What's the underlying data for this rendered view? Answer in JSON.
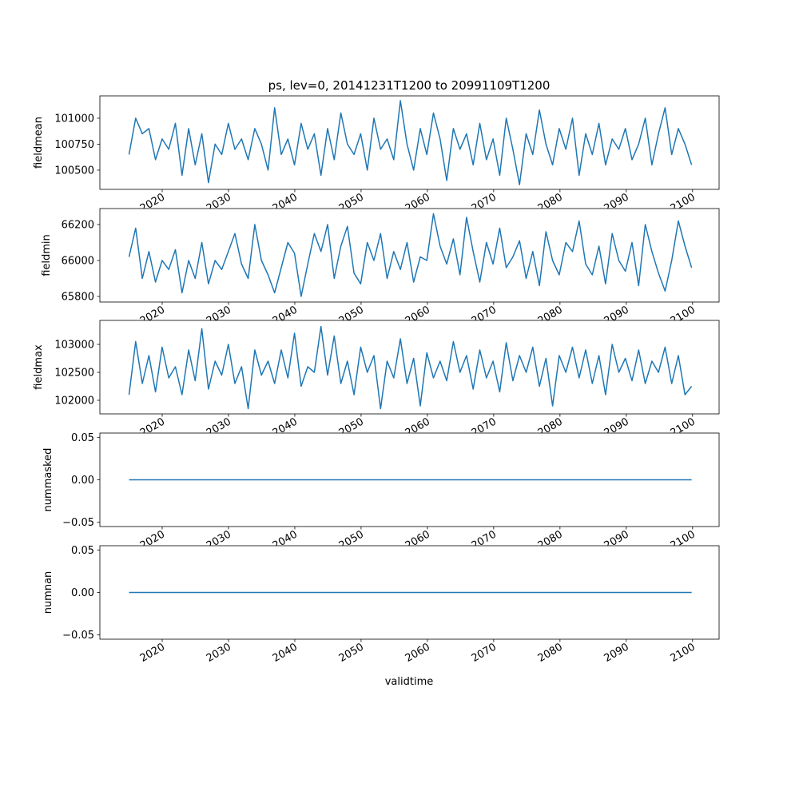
{
  "chart_data": {
    "type": "line",
    "title": "ps, lev=0, 20141231T1200 to 20991109T1200",
    "xlabel": "validtime",
    "xlim": [
      2010.6,
      2104.0
    ],
    "x_ticks": [
      2020,
      2030,
      2040,
      2050,
      2060,
      2070,
      2080,
      2090,
      2100
    ],
    "x_tick_labels": [
      "2020",
      "2030",
      "2040",
      "2050",
      "2060",
      "2070",
      "2080",
      "2090",
      "2100"
    ],
    "x_start": 2015.0,
    "x_end": 2099.85,
    "line_color": "#1f77b4",
    "subplots": [
      {
        "ylabel": "fieldmean",
        "ylim": [
          100315,
          101215
        ],
        "y_ticks": [
          100500,
          100750,
          101000
        ],
        "y_tick_labels": [
          "100500",
          "100750",
          "101000"
        ],
        "values": [
          100650,
          101000,
          100850,
          100900,
          100600,
          100800,
          100700,
          100950,
          100450,
          100900,
          100550,
          100850,
          100380,
          100750,
          100650,
          100950,
          100700,
          100800,
          100600,
          100900,
          100750,
          100500,
          101100,
          100650,
          100800,
          100550,
          100950,
          100700,
          100850,
          100450,
          100900,
          100600,
          101050,
          100750,
          100650,
          100850,
          100500,
          101000,
          100700,
          100800,
          100600,
          101170,
          100750,
          100500,
          100900,
          100650,
          101050,
          100800,
          100400,
          100900,
          100700,
          100850,
          100550,
          100950,
          100600,
          100800,
          100450,
          101000,
          100700,
          100360,
          100850,
          100650,
          101080,
          100750,
          100550,
          100900,
          100700,
          101000,
          100450,
          100850,
          100650,
          100950,
          100550,
          100800,
          100700,
          100900,
          100600,
          100750,
          101000,
          100550,
          100850,
          101100,
          100650,
          100900,
          100750,
          100550
        ]
      },
      {
        "ylabel": "fieldmin",
        "ylim": [
          65769,
          66289
        ],
        "y_ticks": [
          65800,
          66000,
          66200
        ],
        "y_tick_labels": [
          "65800",
          "66000",
          "66200"
        ],
        "values": [
          66020,
          66180,
          65900,
          66050,
          65880,
          66000,
          65950,
          66060,
          65820,
          66000,
          65900,
          66100,
          65870,
          66000,
          65950,
          66050,
          66150,
          65980,
          65900,
          66200,
          66000,
          65920,
          65820,
          65960,
          66100,
          66040,
          65800,
          65980,
          66150,
          66050,
          66200,
          65900,
          66080,
          66190,
          65930,
          65870,
          66100,
          66000,
          66150,
          65900,
          66050,
          65950,
          66100,
          65880,
          66020,
          66000,
          66260,
          66080,
          65980,
          66120,
          65920,
          66240,
          66050,
          65880,
          66100,
          65980,
          66180,
          65960,
          66020,
          66110,
          65900,
          66050,
          65860,
          66160,
          66000,
          65920,
          66100,
          66050,
          66220,
          65980,
          65920,
          66080,
          65870,
          66150,
          66000,
          65940,
          66100,
          65860,
          66200,
          66050,
          65930,
          65830,
          66000,
          66220,
          66080,
          65960
        ]
      },
      {
        "ylabel": "fieldmax",
        "ylim": [
          101757,
          103429
        ],
        "y_ticks": [
          102000,
          102500,
          103000
        ],
        "y_tick_labels": [
          "102000",
          "102500",
          "103000"
        ],
        "values": [
          102100,
          103050,
          102300,
          102800,
          102150,
          102950,
          102400,
          102600,
          102100,
          102900,
          102350,
          103280,
          102200,
          102700,
          102450,
          103000,
          102300,
          102600,
          101850,
          102900,
          102450,
          102700,
          102300,
          102900,
          102400,
          103200,
          102250,
          102600,
          102500,
          103320,
          102450,
          103150,
          102300,
          102700,
          102100,
          102950,
          102500,
          102800,
          101850,
          102700,
          102400,
          103100,
          102300,
          102750,
          101900,
          102850,
          102400,
          102700,
          102350,
          103050,
          102500,
          102800,
          102200,
          102900,
          102400,
          102700,
          102150,
          103030,
          102350,
          102800,
          102500,
          102950,
          102250,
          102750,
          101900,
          102800,
          102500,
          102950,
          102400,
          102900,
          102300,
          102800,
          102100,
          103000,
          102500,
          102750,
          102350,
          102900,
          102300,
          102700,
          102500,
          102950,
          102300,
          102800,
          102100,
          102250
        ]
      },
      {
        "ylabel": "nummasked",
        "ylim": [
          -0.055,
          0.055
        ],
        "y_ticks": [
          -0.05,
          0.0,
          0.05
        ],
        "y_tick_labels": [
          "−0.05",
          "0.00",
          "0.05"
        ],
        "values": [
          0,
          0
        ]
      },
      {
        "ylabel": "numnan",
        "ylim": [
          -0.055,
          0.055
        ],
        "y_ticks": [
          -0.05,
          0.0,
          0.05
        ],
        "y_tick_labels": [
          "−0.05",
          "0.00",
          "0.05"
        ],
        "values": [
          0,
          0
        ]
      }
    ]
  }
}
